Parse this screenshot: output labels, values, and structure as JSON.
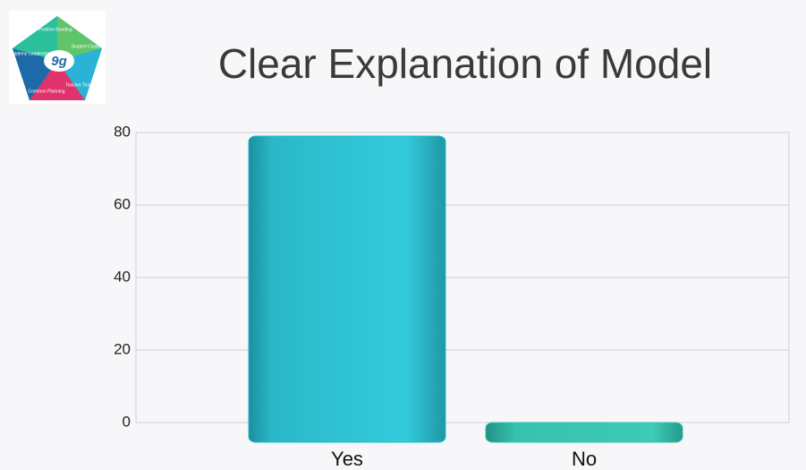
{
  "logo": {
    "mark": "9g",
    "segments": [
      "Positive Bonding",
      "Student Clusters",
      "Teacher Teams",
      "Common Planning",
      "Academy Leadership"
    ]
  },
  "chart_data": {
    "type": "bar",
    "title": "Clear Explanation of Model",
    "categories": [
      "Yes",
      "No"
    ],
    "values": [
      79,
      0
    ],
    "colors": [
      "#2ab8c9",
      "#36c2ae"
    ],
    "ylim": [
      0,
      80
    ],
    "yticks": [
      0,
      20,
      40,
      60,
      80
    ],
    "grid": true
  }
}
